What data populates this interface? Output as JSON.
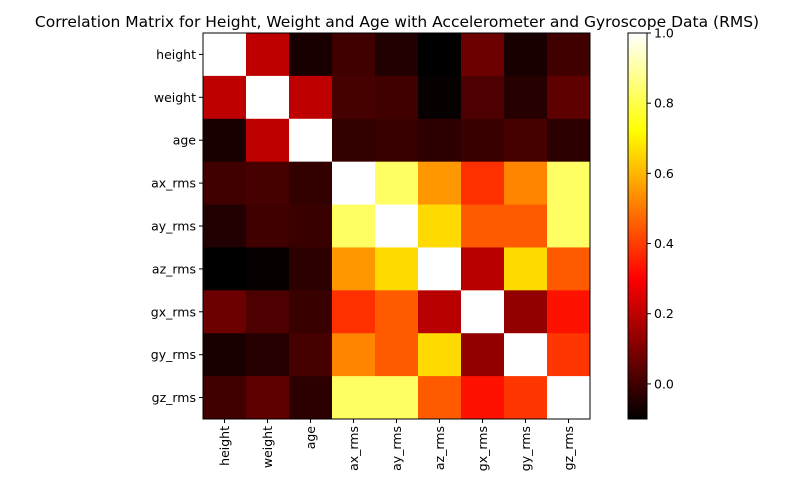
{
  "chart_data": {
    "type": "heatmap",
    "title": "Correlation Matrix for Height, Weight and Age with Accelerometer and Gyroscope Data (RMS)",
    "row_labels": [
      "height",
      "weight",
      "age",
      "ax_rms",
      "ay_rms",
      "az_rms",
      "gx_rms",
      "gy_rms",
      "gz_rms"
    ],
    "col_labels": [
      "height",
      "weight",
      "age",
      "ax_rms",
      "ay_rms",
      "az_rms",
      "gx_rms",
      "gy_rms",
      "gz_rms"
    ],
    "values": [
      [
        1.0,
        0.2,
        -0.06,
        0.0,
        -0.05,
        -0.1,
        0.07,
        -0.06,
        0.0
      ],
      [
        0.2,
        1.0,
        0.2,
        0.01,
        0.0,
        -0.09,
        0.02,
        -0.04,
        0.05
      ],
      [
        -0.06,
        0.2,
        1.0,
        -0.02,
        -0.01,
        -0.03,
        -0.01,
        0.01,
        -0.03
      ],
      [
        0.0,
        0.01,
        -0.02,
        1.0,
        0.83,
        0.55,
        0.38,
        0.52,
        0.83
      ],
      [
        -0.05,
        0.0,
        -0.01,
        0.83,
        1.0,
        0.66,
        0.45,
        0.45,
        0.83
      ],
      [
        -0.1,
        -0.09,
        -0.03,
        0.55,
        0.66,
        1.0,
        0.19,
        0.66,
        0.45
      ],
      [
        0.07,
        0.02,
        -0.01,
        0.38,
        0.45,
        0.19,
        1.0,
        0.13,
        0.33
      ],
      [
        -0.06,
        -0.04,
        0.01,
        0.52,
        0.45,
        0.66,
        0.13,
        1.0,
        0.39
      ],
      [
        0.0,
        0.05,
        -0.03,
        0.83,
        0.83,
        0.45,
        0.33,
        0.39,
        1.0
      ]
    ],
    "colormap": "hot",
    "colorbar": {
      "range": [
        -0.1,
        1.0
      ],
      "ticks": [
        0.0,
        0.2,
        0.4,
        0.6,
        0.8,
        1.0
      ],
      "tick_labels": [
        "0.0",
        "0.2",
        "0.4",
        "0.6",
        "0.8",
        "1.0"
      ]
    },
    "grid": false,
    "xlabel": "",
    "ylabel": ""
  }
}
